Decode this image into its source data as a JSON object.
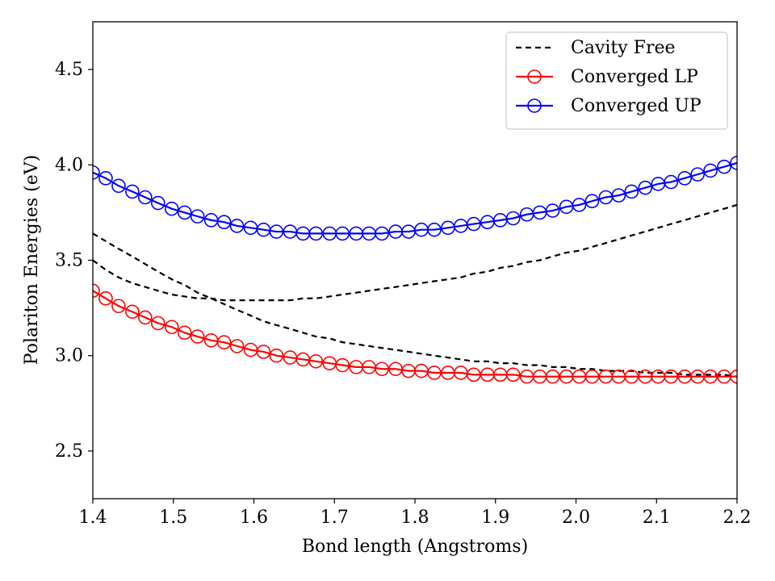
{
  "chart_data": {
    "type": "line",
    "xlabel": "Bond length (Angstroms)",
    "ylabel": "Polariton Energies (eV)",
    "xlim": [
      1.4,
      2.2
    ],
    "ylim": [
      2.25,
      4.75
    ],
    "xticks": [
      1.4,
      1.5,
      1.6,
      1.7,
      1.8,
      1.9,
      2.0,
      2.1,
      2.2
    ],
    "xtick_labels": [
      "1.4",
      "1.5",
      "1.6",
      "1.7",
      "1.8",
      "1.9",
      "2.0",
      "2.1",
      "2.2"
    ],
    "yticks": [
      2.5,
      3.0,
      3.5,
      4.0,
      4.5
    ],
    "ytick_labels": [
      "2.5",
      "3.0",
      "3.5",
      "4.0",
      "4.5"
    ],
    "grid": false,
    "legend_position": "top-right",
    "x": [
      1.4,
      1.416,
      1.432,
      1.449,
      1.465,
      1.481,
      1.498,
      1.514,
      1.53,
      1.547,
      1.563,
      1.579,
      1.596,
      1.612,
      1.628,
      1.645,
      1.661,
      1.677,
      1.694,
      1.71,
      1.727,
      1.743,
      1.759,
      1.776,
      1.792,
      1.808,
      1.824,
      1.841,
      1.857,
      1.873,
      1.89,
      1.906,
      1.922,
      1.939,
      1.955,
      1.971,
      1.988,
      2.004,
      2.02,
      2.037,
      2.053,
      2.069,
      2.086,
      2.102,
      2.118,
      2.135,
      2.151,
      2.167,
      2.184,
      2.2
    ],
    "series": [
      {
        "name": "Cavity Free",
        "color": "#000000",
        "style": "dashed",
        "values": [
          3.64,
          3.6,
          3.56,
          3.52,
          3.48,
          3.44,
          3.4,
          3.37,
          3.33,
          3.3,
          3.27,
          3.24,
          3.21,
          3.18,
          3.16,
          3.14,
          3.12,
          3.1,
          3.09,
          3.07,
          3.06,
          3.05,
          3.04,
          3.03,
          3.02,
          3.01,
          3.0,
          2.99,
          2.98,
          2.97,
          2.97,
          2.96,
          2.96,
          2.95,
          2.95,
          2.94,
          2.94,
          2.93,
          2.93,
          2.92,
          2.92,
          2.92,
          2.91,
          2.91,
          2.91,
          2.9,
          2.9,
          2.9,
          2.9,
          2.89
        ]
      },
      {
        "name": "",
        "color": "#000000",
        "style": "dashed",
        "values": [
          3.5,
          3.45,
          3.41,
          3.38,
          3.36,
          3.34,
          3.32,
          3.31,
          3.3,
          3.3,
          3.29,
          3.29,
          3.29,
          3.29,
          3.29,
          3.29,
          3.3,
          3.3,
          3.31,
          3.32,
          3.33,
          3.34,
          3.35,
          3.36,
          3.37,
          3.38,
          3.39,
          3.4,
          3.41,
          3.43,
          3.44,
          3.46,
          3.47,
          3.49,
          3.5,
          3.52,
          3.54,
          3.55,
          3.57,
          3.59,
          3.61,
          3.63,
          3.65,
          3.67,
          3.69,
          3.71,
          3.73,
          3.75,
          3.77,
          3.79
        ]
      },
      {
        "name": "Converged LP",
        "color": "#ff0000",
        "style": "solid-circle-markers",
        "values": [
          3.34,
          3.3,
          3.26,
          3.23,
          3.2,
          3.17,
          3.15,
          3.12,
          3.1,
          3.08,
          3.07,
          3.05,
          3.03,
          3.02,
          3.0,
          2.99,
          2.98,
          2.97,
          2.96,
          2.95,
          2.94,
          2.94,
          2.93,
          2.93,
          2.92,
          2.92,
          2.91,
          2.91,
          2.91,
          2.9,
          2.9,
          2.9,
          2.9,
          2.89,
          2.89,
          2.89,
          2.89,
          2.89,
          2.89,
          2.89,
          2.89,
          2.89,
          2.89,
          2.89,
          2.89,
          2.89,
          2.89,
          2.89,
          2.89,
          2.89
        ]
      },
      {
        "name": "Converged UP",
        "color": "#0000ff",
        "style": "solid-circle-markers",
        "values": [
          3.96,
          3.93,
          3.89,
          3.86,
          3.83,
          3.8,
          3.77,
          3.75,
          3.73,
          3.71,
          3.7,
          3.68,
          3.67,
          3.66,
          3.65,
          3.65,
          3.64,
          3.64,
          3.64,
          3.64,
          3.64,
          3.64,
          3.64,
          3.65,
          3.65,
          3.66,
          3.66,
          3.67,
          3.68,
          3.69,
          3.7,
          3.71,
          3.72,
          3.74,
          3.75,
          3.76,
          3.78,
          3.79,
          3.81,
          3.83,
          3.84,
          3.86,
          3.88,
          3.9,
          3.91,
          3.93,
          3.95,
          3.97,
          3.99,
          4.01
        ]
      }
    ]
  }
}
